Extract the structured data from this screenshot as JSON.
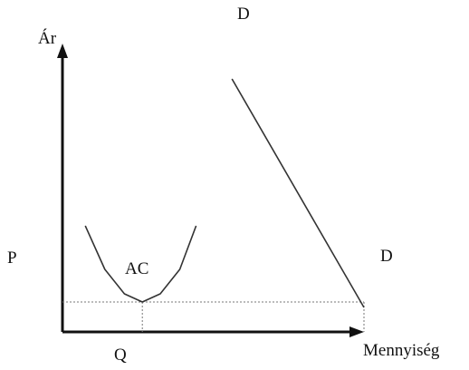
{
  "chart_data": {
    "type": "line",
    "title": "",
    "ylabel": "Ár",
    "xlabel": "Mennyiség",
    "grid": false,
    "series": [
      {
        "name": "D",
        "label_top": "D",
        "label_bottom": "D",
        "color": "#333333",
        "x": [
          0.52,
          0.925
        ],
        "y": [
          0.93,
          0.09
        ]
      },
      {
        "name": "AC",
        "label": "AC",
        "color": "#333333",
        "x": [
          0.07,
          0.13,
          0.19,
          0.245,
          0.3,
          0.36,
          0.41
        ],
        "y": [
          0.39,
          0.23,
          0.14,
          0.11,
          0.14,
          0.23,
          0.39
        ]
      }
    ],
    "annotations": {
      "price_label": "P",
      "quantity_label": "Q",
      "price_level": 0.11,
      "ac_min_quantity": 0.245,
      "demand_quantity_at_price": 0.925,
      "guide_color": "#777777"
    }
  }
}
